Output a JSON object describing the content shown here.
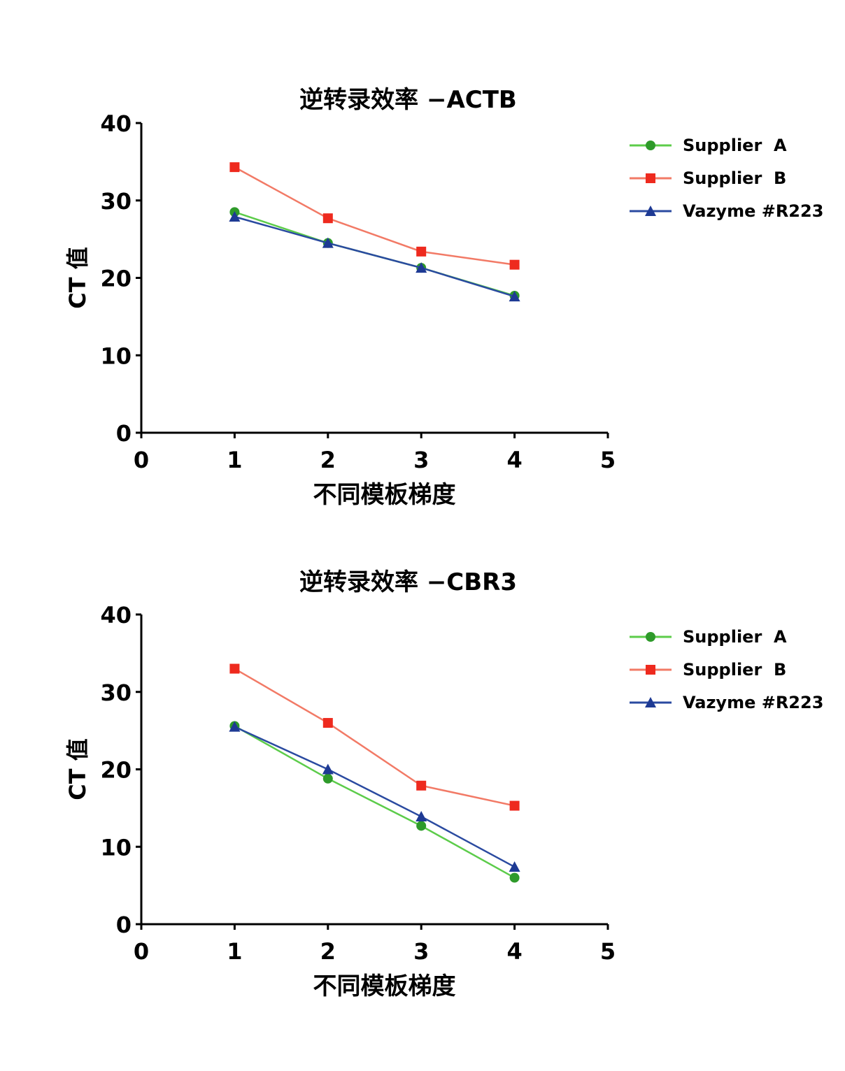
{
  "chart_data": [
    {
      "type": "line",
      "title": "逆转录效率 −ACTB",
      "xlabel": "不同模板梯度",
      "ylabel": "CT 值",
      "xlim": [
        0,
        5
      ],
      "ylim": [
        0,
        40
      ],
      "xticks": [
        0,
        1,
        2,
        3,
        4,
        5
      ],
      "yticks": [
        0,
        10,
        20,
        30,
        40
      ],
      "grid": false,
      "legend_position": "top-right-outside",
      "x": [
        1,
        2,
        3,
        4
      ],
      "series": [
        {
          "name": "Supplier  A",
          "marker": "circle",
          "color": "#2e9a2a",
          "line_color": "#5ccc4a",
          "values": [
            28.5,
            24.5,
            21.3,
            17.7
          ]
        },
        {
          "name": "Supplier  B",
          "marker": "square",
          "color": "#ee2a1e",
          "line_color": "#f27a66",
          "values": [
            34.3,
            27.7,
            23.4,
            21.7
          ]
        },
        {
          "name": "Vazyme #R223",
          "marker": "triangle",
          "color": "#1e3a94",
          "line_color": "#2a4aa0",
          "values": [
            27.9,
            24.5,
            21.3,
            17.6
          ]
        }
      ]
    },
    {
      "type": "line",
      "title": "逆转录效率 −CBR3",
      "xlabel": "不同模板梯度",
      "ylabel": "CT 值",
      "xlim": [
        0,
        5
      ],
      "ylim": [
        0,
        40
      ],
      "xticks": [
        0,
        1,
        2,
        3,
        4,
        5
      ],
      "yticks": [
        0,
        10,
        20,
        30,
        40
      ],
      "grid": false,
      "legend_position": "top-right-outside",
      "x": [
        1,
        2,
        3,
        4
      ],
      "series": [
        {
          "name": "Supplier  A",
          "marker": "circle",
          "color": "#2e9a2a",
          "line_color": "#5ccc4a",
          "values": [
            25.6,
            18.8,
            12.7,
            6.0
          ]
        },
        {
          "name": "Supplier  B",
          "marker": "square",
          "color": "#ee2a1e",
          "line_color": "#f27a66",
          "values": [
            33.0,
            26.0,
            17.9,
            15.3
          ]
        },
        {
          "name": "Vazyme #R223",
          "marker": "triangle",
          "color": "#1e3a94",
          "line_color": "#2a4aa0",
          "values": [
            25.5,
            20.0,
            13.9,
            7.4
          ]
        }
      ]
    }
  ]
}
